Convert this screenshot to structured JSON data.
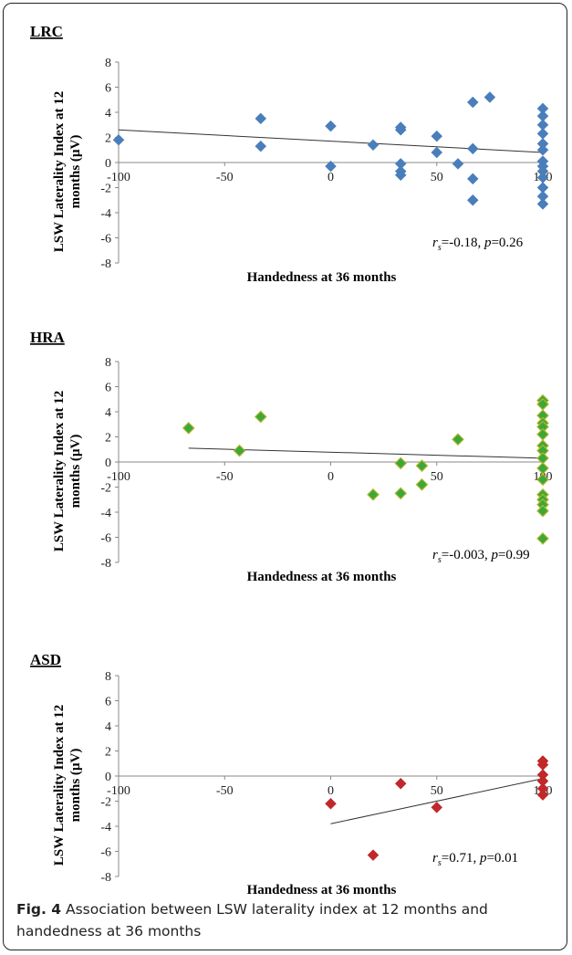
{
  "figure": {
    "caption_label": "Fig. 4",
    "caption_text": " Association between LSW laterality index at 12 months and handedness at 36 months"
  },
  "chart_data": [
    {
      "type": "scatter",
      "title": "LRC",
      "xlabel": "Handedness at 36 months",
      "ylabel": "LSW Laterality Index at 12 months (µV)",
      "xlim": [
        -100,
        100
      ],
      "ylim": [
        -8,
        8
      ],
      "x_ticks": [
        -100,
        -50,
        0,
        50,
        100
      ],
      "y_ticks": [
        8,
        6,
        4,
        2,
        0,
        -2,
        -4,
        -6,
        -8
      ],
      "marker_color": "#4a7ebb",
      "stat_r": "=-0.18, ",
      "stat_p": "=0.26",
      "trendline": {
        "x": [
          -100,
          100
        ],
        "y": [
          2.6,
          0.8
        ]
      },
      "points": [
        {
          "x": -100,
          "y": 1.8
        },
        {
          "x": -33,
          "y": 3.5
        },
        {
          "x": -33,
          "y": 1.3
        },
        {
          "x": 0,
          "y": 2.9
        },
        {
          "x": 0,
          "y": -0.3
        },
        {
          "x": 20,
          "y": 1.4
        },
        {
          "x": 33,
          "y": 2.8
        },
        {
          "x": 33,
          "y": 2.6
        },
        {
          "x": 33,
          "y": -0.1
        },
        {
          "x": 33,
          "y": -0.7
        },
        {
          "x": 33,
          "y": -1.0
        },
        {
          "x": 50,
          "y": 2.1
        },
        {
          "x": 50,
          "y": 0.8
        },
        {
          "x": 60,
          "y": -0.1
        },
        {
          "x": 67,
          "y": 4.8
        },
        {
          "x": 67,
          "y": 1.1
        },
        {
          "x": 67,
          "y": -1.3
        },
        {
          "x": 67,
          "y": -3.0
        },
        {
          "x": 75,
          "y": 5.2
        },
        {
          "x": 100,
          "y": 4.3
        },
        {
          "x": 100,
          "y": 3.7
        },
        {
          "x": 100,
          "y": 3.0
        },
        {
          "x": 100,
          "y": 2.3
        },
        {
          "x": 100,
          "y": 1.5
        },
        {
          "x": 100,
          "y": 1.0
        },
        {
          "x": 100,
          "y": 0.1
        },
        {
          "x": 100,
          "y": -0.3
        },
        {
          "x": 100,
          "y": -0.7
        },
        {
          "x": 100,
          "y": -1.2
        },
        {
          "x": 100,
          "y": -2.0
        },
        {
          "x": 100,
          "y": -2.7
        },
        {
          "x": 100,
          "y": -3.3
        }
      ]
    },
    {
      "type": "scatter",
      "title": "HRA",
      "xlabel": "Handedness at 36 months",
      "ylabel": "LSW Laterality Index at 12 months (µV)",
      "xlim": [
        -100,
        100
      ],
      "ylim": [
        -8,
        8
      ],
      "x_ticks": [
        -100,
        -50,
        0,
        50,
        100
      ],
      "y_ticks": [
        8,
        6,
        4,
        2,
        0,
        -2,
        -4,
        -6,
        -8
      ],
      "marker_color": "#3aa83a",
      "marker_edge": "#b5b52a",
      "stat_r": "=-0.003, ",
      "stat_p": "=0.99",
      "trendline": {
        "x": [
          -67,
          100
        ],
        "y": [
          1.1,
          0.3
        ]
      },
      "points": [
        {
          "x": -67,
          "y": 2.7
        },
        {
          "x": -43,
          "y": 0.9
        },
        {
          "x": -33,
          "y": 3.6
        },
        {
          "x": 20,
          "y": -2.6
        },
        {
          "x": 33,
          "y": -0.1
        },
        {
          "x": 33,
          "y": -2.5
        },
        {
          "x": 43,
          "y": -1.8
        },
        {
          "x": 43,
          "y": -0.3
        },
        {
          "x": 60,
          "y": 1.8
        },
        {
          "x": 100,
          "y": 4.9
        },
        {
          "x": 100,
          "y": 4.6
        },
        {
          "x": 100,
          "y": 3.7
        },
        {
          "x": 100,
          "y": 3.1
        },
        {
          "x": 100,
          "y": 2.8
        },
        {
          "x": 100,
          "y": 2.2
        },
        {
          "x": 100,
          "y": 1.3
        },
        {
          "x": 100,
          "y": 0.9
        },
        {
          "x": 100,
          "y": 0.3
        },
        {
          "x": 100,
          "y": -0.5
        },
        {
          "x": 100,
          "y": -1.4
        },
        {
          "x": 100,
          "y": -2.6
        },
        {
          "x": 100,
          "y": -3.0
        },
        {
          "x": 100,
          "y": -3.4
        },
        {
          "x": 100,
          "y": -3.9
        },
        {
          "x": 100,
          "y": -6.1
        }
      ]
    },
    {
      "type": "scatter",
      "title": "ASD",
      "xlabel": "Handedness at 36 months",
      "ylabel": "LSW Laterality Index at 12 months (µV)",
      "xlim": [
        -100,
        100
      ],
      "ylim": [
        -8,
        8
      ],
      "x_ticks": [
        -100,
        -50,
        0,
        50,
        100
      ],
      "y_ticks": [
        8,
        6,
        4,
        2,
        0,
        -2,
        -4,
        -6,
        -8
      ],
      "marker_color": "#c0282a",
      "stat_r": "=0.71, ",
      "stat_p": "=0.01",
      "trendline": {
        "x": [
          0,
          100
        ],
        "y": [
          -3.8,
          -0.2
        ]
      },
      "points": [
        {
          "x": 0,
          "y": -2.2
        },
        {
          "x": 20,
          "y": -6.3
        },
        {
          "x": 33,
          "y": -0.6
        },
        {
          "x": 50,
          "y": -2.5
        },
        {
          "x": 100,
          "y": 1.2
        },
        {
          "x": 100,
          "y": 0.9
        },
        {
          "x": 100,
          "y": 0.1
        },
        {
          "x": 100,
          "y": -0.4
        },
        {
          "x": 100,
          "y": -1.0
        },
        {
          "x": 100,
          "y": -1.5
        }
      ]
    }
  ]
}
